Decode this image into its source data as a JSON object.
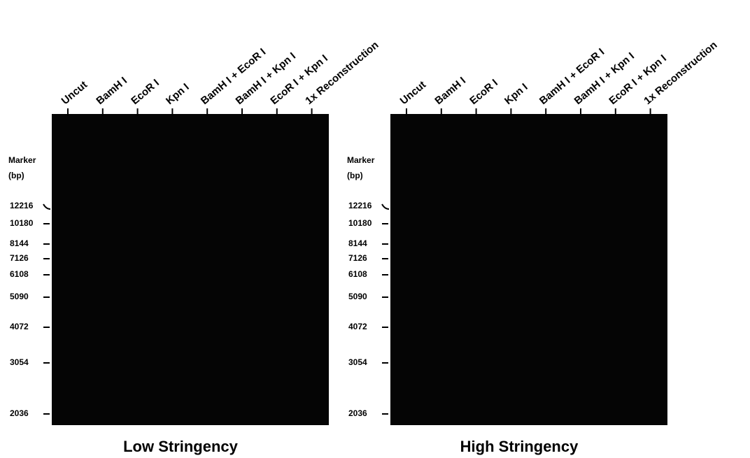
{
  "panels": [
    {
      "lanes": [
        "Uncut",
        "BamH I",
        "EcoR I",
        "Kpn I",
        "BamH I + EcoR I",
        "BamH I + Kpn I",
        "EcoR I + Kpn I",
        "1x Reconstruction"
      ],
      "marker_title": "Marker",
      "marker_unit": "(bp)",
      "markers": [
        12216,
        10180,
        8144,
        7126,
        6108,
        5090,
        4072,
        3054,
        2036
      ],
      "caption": "Low Stringency"
    },
    {
      "lanes": [
        "Uncut",
        "BamH I",
        "EcoR I",
        "Kpn I",
        "BamH I + EcoR I",
        "BamH I + Kpn I",
        "EcoR I + Kpn I",
        "1x Reconstruction"
      ],
      "marker_title": "Marker",
      "marker_unit": "(bp)",
      "markers": [
        12216,
        10180,
        8144,
        7126,
        6108,
        5090,
        4072,
        3054,
        2036
      ],
      "caption": "High Stringency"
    }
  ]
}
